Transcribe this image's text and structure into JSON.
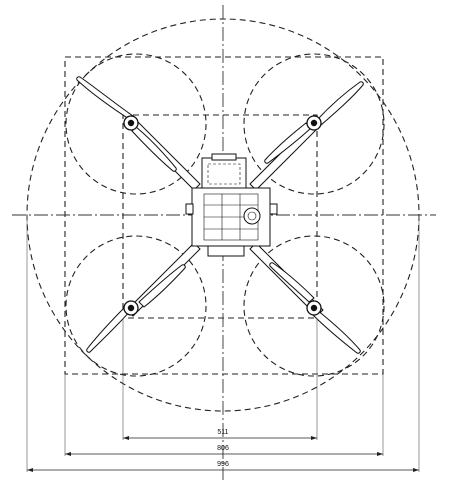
{
  "dimensions": {
    "inner": "511",
    "middle": "806",
    "outer": "996"
  }
}
